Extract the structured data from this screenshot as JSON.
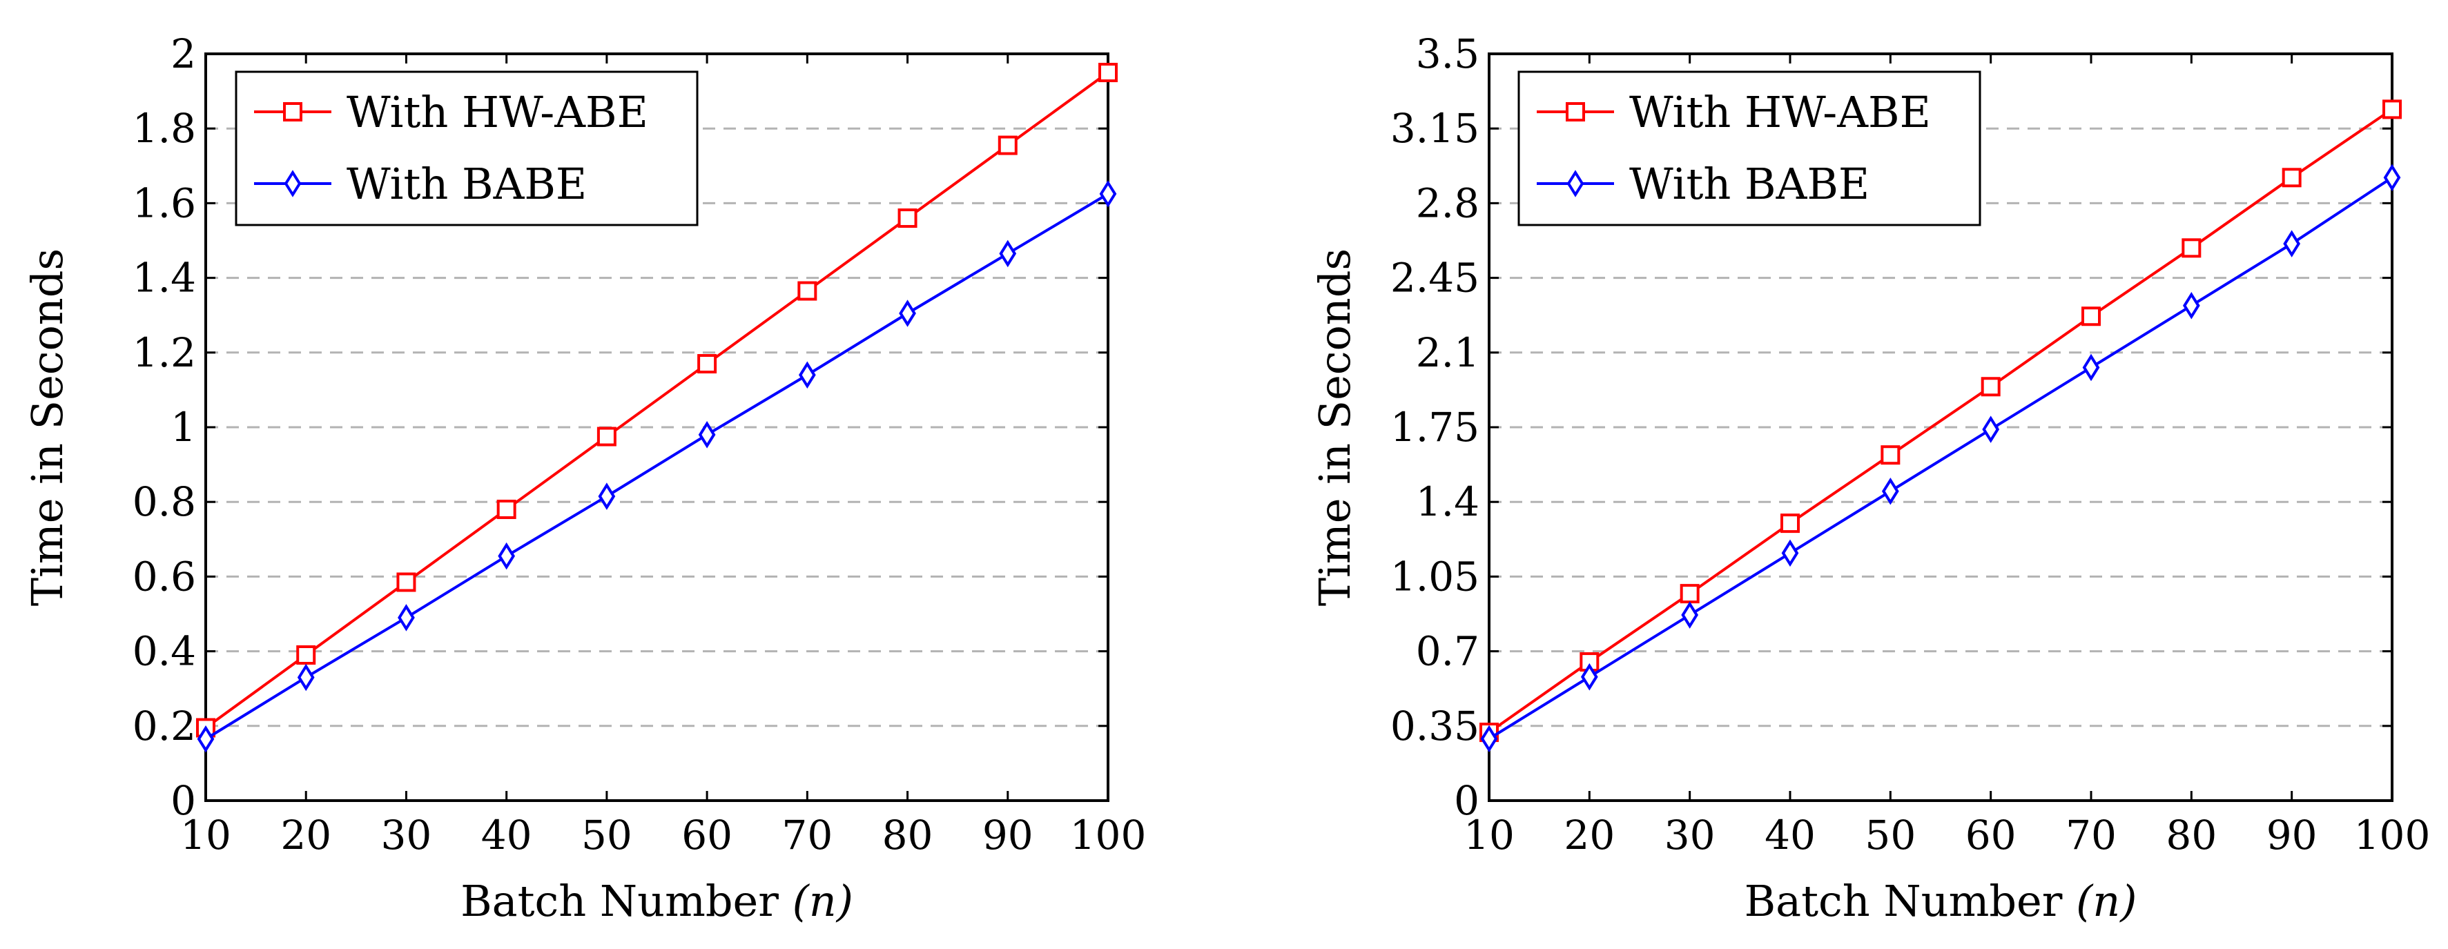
{
  "figure": {
    "colors": {
      "series1": "#ff0000",
      "series2": "#0000ff",
      "grid": "#b3b3b3",
      "axis": "#000000"
    }
  },
  "chart_data": [
    {
      "type": "line",
      "title": "",
      "xlabel_main": "Batch Number ",
      "xlabel_var": "(n)",
      "ylabel": "Time in Seconds",
      "xlim": [
        10,
        100
      ],
      "ylim": [
        0,
        2
      ],
      "x": [
        10,
        20,
        30,
        40,
        50,
        60,
        70,
        80,
        90,
        100
      ],
      "x_ticks": [
        "10",
        "20",
        "30",
        "40",
        "50",
        "60",
        "70",
        "80",
        "90",
        "100"
      ],
      "y_tick_values": [
        0,
        0.2,
        0.4,
        0.6,
        0.8,
        1,
        1.2,
        1.4,
        1.6,
        1.8,
        2
      ],
      "y_ticks": [
        "0",
        "0.2",
        "0.4",
        "0.6",
        "0.8",
        "1",
        "1.2",
        "1.4",
        "1.6",
        "1.8",
        "2"
      ],
      "grid": "horizontal-dashed",
      "legend_position": "top-left",
      "series": [
        {
          "name": "With HW-ABE",
          "marker": "square",
          "color": "#ff0000",
          "values": [
            0.195,
            0.39,
            0.585,
            0.78,
            0.975,
            1.17,
            1.365,
            1.56,
            1.755,
            1.95
          ]
        },
        {
          "name": "With BABE",
          "marker": "diamond",
          "color": "#0000ff",
          "values": [
            0.165,
            0.33,
            0.49,
            0.655,
            0.815,
            0.98,
            1.14,
            1.305,
            1.465,
            1.625
          ]
        }
      ]
    },
    {
      "type": "line",
      "title": "",
      "xlabel_main": "Batch Number ",
      "xlabel_var": "(n)",
      "ylabel": "Time in Seconds",
      "xlim": [
        10,
        100
      ],
      "ylim": [
        0,
        3.5
      ],
      "x": [
        10,
        20,
        30,
        40,
        50,
        60,
        70,
        80,
        90,
        100
      ],
      "x_ticks": [
        "10",
        "20",
        "30",
        "40",
        "50",
        "60",
        "70",
        "80",
        "90",
        "100"
      ],
      "y_tick_values": [
        0,
        0.35,
        0.7,
        1.05,
        1.4,
        1.75,
        2.1,
        2.45,
        2.8,
        3.15,
        3.5
      ],
      "y_ticks": [
        "0",
        "0.35",
        "0.7",
        "1.05",
        "1.4",
        "1.75",
        "2.1",
        "2.45",
        "2.8",
        "3.15",
        "3.5"
      ],
      "grid": "horizontal-dashed",
      "legend_position": "top-left",
      "series": [
        {
          "name": "With HW-ABE",
          "marker": "square",
          "color": "#ff0000",
          "values": [
            0.32,
            0.65,
            0.97,
            1.3,
            1.62,
            1.94,
            2.27,
            2.59,
            2.92,
            3.24
          ]
        },
        {
          "name": "With BABE",
          "marker": "diamond",
          "color": "#0000ff",
          "values": [
            0.29,
            0.58,
            0.87,
            1.16,
            1.45,
            1.74,
            2.03,
            2.32,
            2.61,
            2.92
          ]
        }
      ]
    }
  ]
}
